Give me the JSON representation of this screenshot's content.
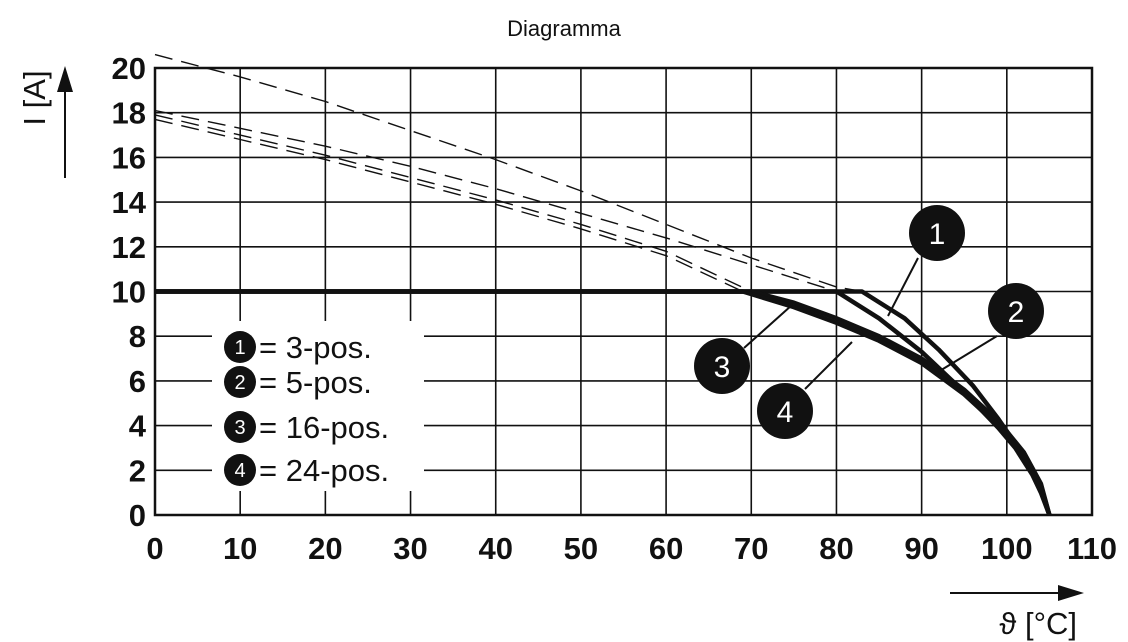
{
  "chart_data": {
    "type": "line",
    "title": "Diagramma",
    "xlabel": "ϑ [°C]",
    "ylabel": "I [A]",
    "xlim": [
      0,
      110
    ],
    "ylim": [
      0,
      20
    ],
    "x_ticks": [
      "0",
      "10",
      "20",
      "30",
      "40",
      "50",
      "60",
      "70",
      "80",
      "90",
      "100",
      "110"
    ],
    "y_ticks": [
      "0",
      "2",
      "4",
      "6",
      "8",
      "10",
      "12",
      "14",
      "16",
      "18",
      "20"
    ],
    "grid": true,
    "legend_position": "bottom-left",
    "legend": [
      {
        "marker": "1",
        "label": "= 3-pos."
      },
      {
        "marker": "2",
        "label": "= 5-pos."
      },
      {
        "marker": "3",
        "label": "= 16-pos."
      },
      {
        "marker": "4",
        "label": "= 24-pos."
      }
    ],
    "series": [
      {
        "marker": "1",
        "x": [
          0,
          83,
          88,
          92,
          96,
          99,
          101,
          103,
          104,
          105
        ],
        "y": [
          10,
          10,
          8.8,
          7.4,
          5.8,
          4.3,
          3.2,
          1.9,
          1.1,
          0
        ],
        "dashed_x": [
          0,
          10,
          20,
          30,
          40,
          50,
          60,
          70,
          80,
          83
        ],
        "dashed_y": [
          20.6,
          19.6,
          18.5,
          17.2,
          15.9,
          14.5,
          13.0,
          11.5,
          10.2,
          10
        ]
      },
      {
        "marker": "2",
        "x": [
          0,
          80,
          85,
          90,
          95,
          99,
          101,
          103,
          104,
          105
        ],
        "y": [
          10,
          10,
          8.8,
          7.3,
          5.5,
          3.9,
          3.0,
          1.8,
          1.0,
          0
        ],
        "dashed_x": [
          0,
          10,
          20,
          30,
          40,
          50,
          60,
          70,
          80
        ],
        "dashed_y": [
          18.1,
          17.3,
          16.5,
          15.6,
          14.6,
          13.5,
          12.4,
          11.2,
          10
        ]
      },
      {
        "marker": "3",
        "x": [
          0,
          70,
          75,
          80,
          85,
          90,
          95,
          99,
          102,
          104,
          105
        ],
        "y": [
          10,
          10,
          9.5,
          8.8,
          8.0,
          7.0,
          5.6,
          4.2,
          2.8,
          1.4,
          0
        ],
        "dashed_x": [
          0,
          10,
          20,
          30,
          40,
          50,
          60,
          70
        ],
        "dashed_y": [
          17.9,
          17.0,
          16.1,
          15.1,
          14.1,
          13.0,
          11.8,
          10
        ]
      },
      {
        "marker": "4",
        "x": [
          0,
          69,
          75,
          80,
          85,
          90,
          95,
          99,
          102,
          104,
          105
        ],
        "y": [
          10,
          10,
          9.3,
          8.6,
          7.8,
          6.8,
          5.4,
          4.0,
          2.6,
          1.3,
          0
        ],
        "dashed_x": [
          0,
          10,
          20,
          30,
          40,
          50,
          60,
          69
        ],
        "dashed_y": [
          17.7,
          16.8,
          15.9,
          14.9,
          13.9,
          12.8,
          11.6,
          10
        ]
      }
    ]
  }
}
